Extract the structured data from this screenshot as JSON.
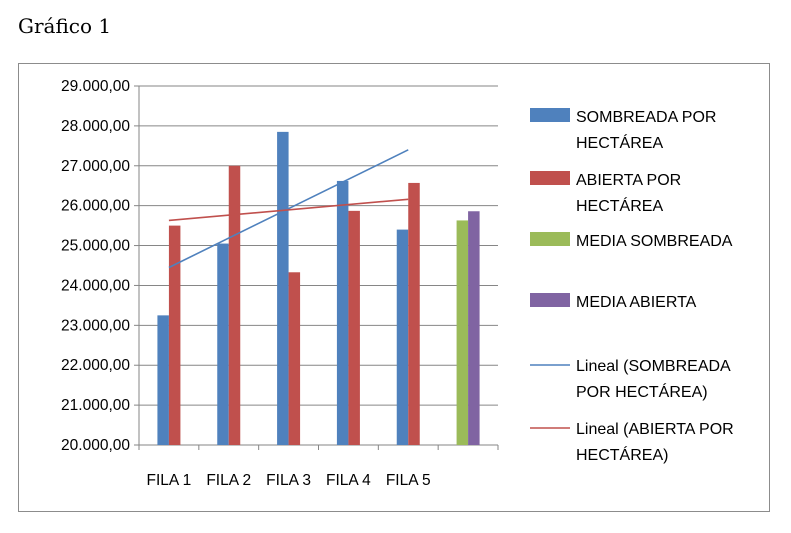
{
  "caption": "Gráfico 1",
  "chart_data": {
    "type": "bar",
    "categories": [
      "FILA 1",
      "FILA 2",
      "FILA 3",
      "FILA 4",
      "FILA 5",
      ""
    ],
    "ylim": [
      20000,
      29000
    ],
    "ytick_values": [
      20000,
      21000,
      22000,
      23000,
      24000,
      25000,
      26000,
      27000,
      28000,
      29000
    ],
    "ytick_labels": [
      "20.000,00",
      "21.000,00",
      "22.000,00",
      "23.000,00",
      "24.000,00",
      "25.000,00",
      "26.000,00",
      "27.000,00",
      "28.000,00",
      "29.000,00"
    ],
    "grid": "horizontal",
    "legend_position": "right",
    "series": [
      {
        "name": "SOMBREADA POR HECTÁREA",
        "color": "#4F81BD",
        "values": [
          23250,
          25050,
          27850,
          26620,
          25400,
          null
        ]
      },
      {
        "name": "ABIERTA POR HECTÁREA",
        "color": "#C0504D",
        "values": [
          25500,
          27000,
          24330,
          25870,
          26570,
          null
        ]
      },
      {
        "name": "MEDIA SOMBREADA",
        "color": "#9BBB59",
        "values": [
          null,
          null,
          null,
          null,
          null,
          25630
        ]
      },
      {
        "name": "MEDIA ABIERTA",
        "color": "#8064A2",
        "values": [
          null,
          null,
          null,
          null,
          null,
          25860
        ]
      }
    ],
    "trendlines": [
      {
        "name": "Lineal (SOMBREADA POR HECTÁREA)",
        "color": "#4F81BD",
        "start": 24450,
        "end": 27400
      },
      {
        "name": "Lineal (ABIERTA POR HECTÁREA)",
        "color": "#C0504D",
        "start": 25630,
        "end": 26160
      }
    ],
    "legend": [
      {
        "lines": [
          "SOMBREADA POR",
          "HECTÁREA"
        ],
        "kind": "box",
        "color": "#4F81BD"
      },
      {
        "lines": [
          "ABIERTA POR",
          "HECTÁREA"
        ],
        "kind": "box",
        "color": "#C0504D"
      },
      {
        "lines": [
          "MEDIA SOMBREADA"
        ],
        "kind": "box",
        "color": "#9BBB59"
      },
      {
        "lines": [
          "MEDIA ABIERTA"
        ],
        "kind": "box",
        "color": "#8064A2"
      },
      {
        "lines": [
          "Lineal (SOMBREADA",
          "POR HECTÁREA)"
        ],
        "kind": "line",
        "color": "#4F81BD"
      },
      {
        "lines": [
          "Lineal (ABIERTA POR",
          "HECTÁREA)"
        ],
        "kind": "line",
        "color": "#C0504D"
      }
    ]
  }
}
